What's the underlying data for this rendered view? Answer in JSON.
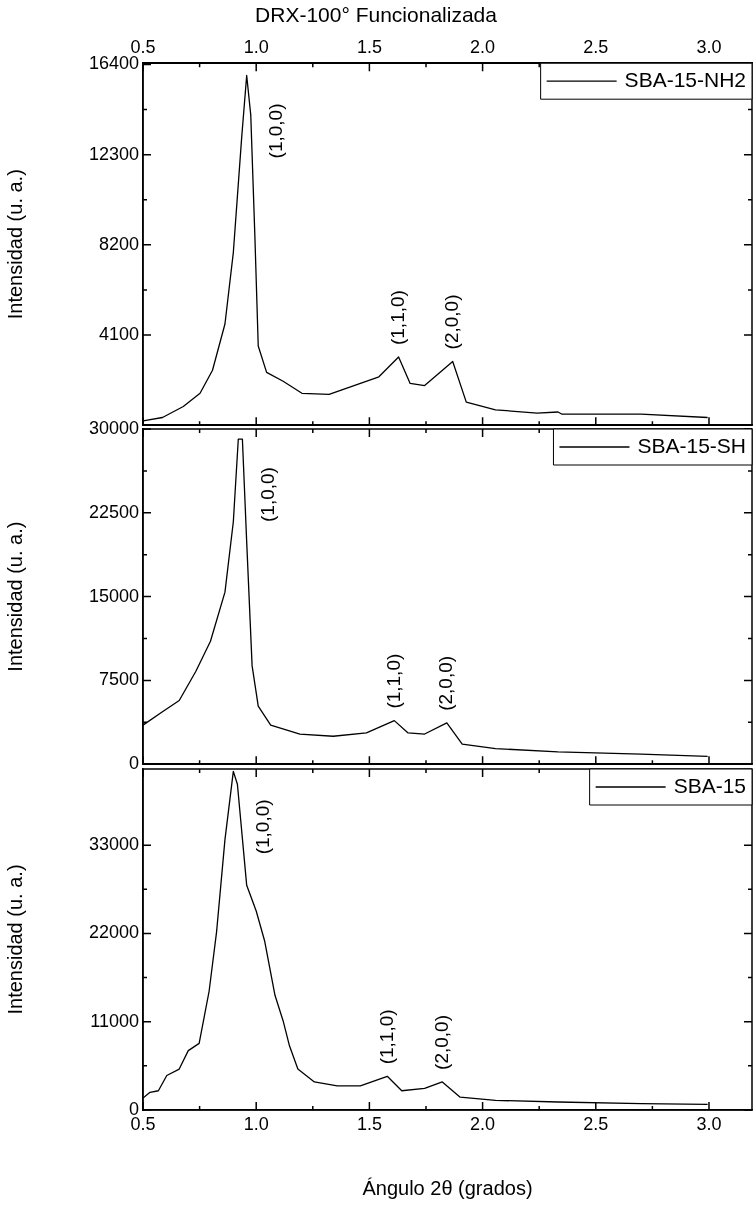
{
  "chart_data": [
    {
      "type": "line",
      "title": "DRX-100° Funcionalizada",
      "ylabel": "Intensidad (u. a.)",
      "xlim": [
        0.5,
        3.19
      ],
      "xticks": [
        0.5,
        1,
        1.5,
        2,
        2.5,
        3
      ],
      "x2lim": [
        0.5,
        3.19
      ],
      "x2ticks": [
        0.5,
        {
          "value": 1,
          "label": "1.0"
        },
        1.5,
        {
          "value": 2,
          "label": "2.0"
        },
        2.5,
        {
          "value": 3,
          "label": "3.0"
        }
      ],
      "ylim": [
        0,
        16460
      ],
      "yticks": [
        4100,
        8200,
        12300,
        16400
      ],
      "tick_labels": "y",
      "grid": false,
      "legend": "top right",
      "x": [
        0.5,
        0.586,
        0.678,
        0.752,
        0.807,
        0.862,
        0.899,
        0.936,
        0.958,
        0.976,
        0.994,
        1.009,
        1.046,
        1.119,
        1.202,
        1.322,
        1.432,
        1.542,
        1.629,
        1.68,
        1.744,
        1.868,
        1.928,
        2.057,
        2.241,
        2.333,
        2.351,
        2.7,
        2.994
      ],
      "series": [
        {
          "name": "SBA-15-NH2",
          "color": "#000000",
          "values": [
            200,
            350,
            850,
            1450,
            2500,
            4600,
            7850,
            13100,
            15900,
            14100,
            8650,
            3600,
            2400,
            2000,
            1450,
            1400,
            1800,
            2200,
            3100,
            1900,
            1800,
            2900,
            1050,
            700,
            550,
            600,
            500,
            500,
            350
          ]
        }
      ],
      "annotations": [
        {
          "text": "(1,0,0)",
          "x": 0.958,
          "y": 15900
        },
        {
          "text": "(1,1,0)",
          "x": 1.629,
          "y": 3100
        },
        {
          "text": "(2,0,0)",
          "x": 1.868,
          "y": 2900
        }
      ]
    },
    {
      "type": "line",
      "ylabel": "Intensidad (u. a.)",
      "xlim": [
        0.5,
        3.19
      ],
      "xticks": [
        0.5,
        1,
        1.5,
        2,
        2.5,
        3
      ],
      "ylim": [
        0,
        30000
      ],
      "yticks": [
        0,
        7500,
        15000,
        22500,
        30000
      ],
      "tick_labels": "y",
      "grid": false,
      "legend": "top right",
      "x": [
        0.5,
        0.586,
        0.66,
        0.733,
        0.798,
        0.862,
        0.899,
        0.921,
        0.939,
        0.958,
        0.982,
        1.009,
        1.064,
        1.193,
        1.34,
        1.487,
        1.61,
        1.671,
        1.744,
        1.842,
        1.91,
        2.057,
        2.333,
        2.7,
        2.994
      ],
      "series": [
        {
          "name": "SBA-15-SH",
          "color": "#000000",
          "values": [
            3500,
            4700,
            5700,
            8300,
            11000,
            15400,
            21700,
            29100,
            29100,
            19900,
            8800,
            5200,
            3500,
            2700,
            2500,
            2800,
            3900,
            2800,
            2700,
            3700,
            1800,
            1400,
            1100,
            900,
            700
          ]
        }
      ],
      "annotations": [
        {
          "text": "(1,0,0)",
          "x": 0.921,
          "y": 29100
        },
        {
          "text": "(1,1,0)",
          "x": 1.61,
          "y": 3900
        },
        {
          "text": "(2,0,0)",
          "x": 1.842,
          "y": 3700
        }
      ]
    },
    {
      "type": "line",
      "xlabel": "Ángulo 2θ (grados)",
      "ylabel": "Intensidad (u. a.)",
      "xlim": [
        0.5,
        3.19
      ],
      "xticks": [
        0.5,
        {
          "value": 1,
          "label": "1.0"
        },
        1.5,
        {
          "value": 2,
          "label": "2.0"
        },
        2.5,
        {
          "value": 3,
          "label": "3.0"
        }
      ],
      "ylim": [
        0,
        42500
      ],
      "yticks": [
        0,
        11000,
        22000,
        33000
      ],
      "grid": false,
      "legend": "top right",
      "x": [
        0.5,
        0.531,
        0.568,
        0.605,
        0.66,
        0.7,
        0.748,
        0.792,
        0.825,
        0.862,
        0.899,
        0.917,
        0.958,
        1.0,
        1.037,
        1.083,
        1.119,
        1.147,
        1.184,
        1.257,
        1.358,
        1.46,
        1.579,
        1.643,
        1.744,
        1.822,
        1.901,
        2.057,
        2.333,
        2.7,
        2.994
      ],
      "series": [
        {
          "name": "SBA-15",
          "color": "#000000",
          "values": [
            1500,
            2200,
            2400,
            4300,
            5100,
            7400,
            8300,
            14800,
            22200,
            33700,
            42200,
            40600,
            28000,
            24800,
            21100,
            14300,
            11100,
            8000,
            5100,
            3500,
            3000,
            3000,
            4200,
            2400,
            2700,
            3500,
            1600,
            1200,
            1000,
            800,
            700
          ]
        }
      ],
      "annotations": [
        {
          "text": "(1,0,0)",
          "x": 0.899,
          "y": 42200
        },
        {
          "text": "(1,1,0)",
          "x": 1.579,
          "y": 4200
        },
        {
          "text": "(2,0,0)",
          "x": 1.822,
          "y": 3500
        }
      ]
    }
  ]
}
